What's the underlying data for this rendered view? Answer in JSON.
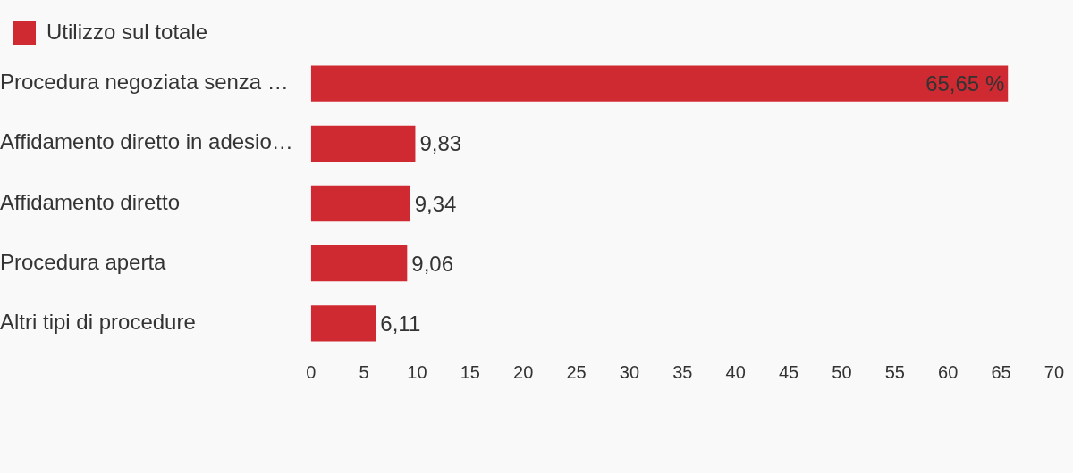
{
  "chart_data": {
    "type": "bar",
    "orientation": "horizontal",
    "categories": [
      "Procedura negoziata senza …",
      "Affidamento diretto in adesio…",
      "Affidamento diretto",
      "Procedura aperta",
      "Altri tipi di procedure"
    ],
    "series": [
      {
        "name": "Utilizzo sul totale",
        "color": "#cf2a31",
        "values": [
          65.65,
          9.83,
          9.34,
          9.06,
          6.11
        ],
        "value_labels": [
          "65,65 %",
          "9,83",
          "9,34",
          "9,06",
          "6,11"
        ]
      }
    ],
    "xlim": [
      0,
      70
    ],
    "xticks": [
      0,
      5,
      10,
      15,
      20,
      25,
      30,
      35,
      40,
      45,
      50,
      55,
      60,
      65,
      70
    ],
    "grid": false,
    "legend": "top left"
  }
}
